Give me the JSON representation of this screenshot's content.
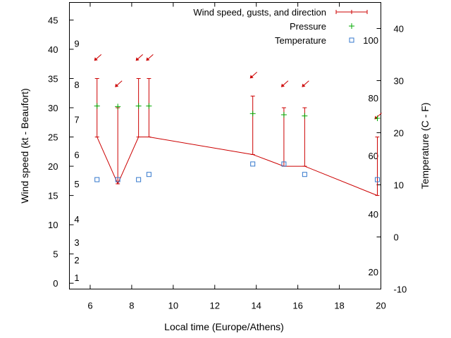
{
  "chart_data": {
    "type": "line",
    "xlabel": "Local time (Europe/Athens)",
    "ylabel": "Wind speed (kt - Beaufort)",
    "y2label": "Temperature (C - F)",
    "xlim": [
      5,
      20
    ],
    "ylim": [
      -1,
      48
    ],
    "y2lim": [
      -10,
      45
    ],
    "grid": false,
    "legend_position": "top-right",
    "x_ticks": [
      "6",
      "8",
      "10",
      "12",
      "14",
      "16",
      "18",
      "20"
    ],
    "y_ticks": [
      "0",
      "5",
      "10",
      "15",
      "20",
      "25",
      "30",
      "35",
      "40",
      "45"
    ],
    "y2_ticks": [
      "-10",
      "0",
      "10",
      "20",
      "30",
      "40"
    ],
    "beaufort_labels": [
      {
        "label": "1",
        "y": 1
      },
      {
        "label": "2",
        "y": 4
      },
      {
        "label": "3",
        "y": 7
      },
      {
        "label": "4",
        "y": 11
      },
      {
        "label": "5",
        "y": 17
      },
      {
        "label": "6",
        "y": 22
      },
      {
        "label": "7",
        "y": 28
      },
      {
        "label": "8",
        "y": 34
      },
      {
        "label": "9",
        "y": 41
      }
    ],
    "fahrenheit_labels": [
      {
        "label": "20",
        "y2": -6.7
      },
      {
        "label": "40",
        "y2": 4.4
      },
      {
        "label": "60",
        "y2": 15.6
      },
      {
        "label": "80",
        "y2": 26.7
      },
      {
        "label": "100",
        "y2": 37.8
      }
    ],
    "legend": {
      "wind": "Wind speed, gusts, and direction",
      "pressure": "Pressure",
      "temperature": "Temperature"
    },
    "series": [
      {
        "name": "Wind speed, gusts, and direction",
        "color": "#cc0000",
        "x": [
          6.33,
          7.33,
          8.33,
          8.83,
          13.83,
          15.33,
          16.33,
          19.83
        ],
        "values": [
          25,
          17,
          25,
          25,
          22,
          20,
          20,
          15
        ],
        "gusts": [
          35,
          30,
          35,
          35,
          32,
          30,
          30,
          25
        ],
        "direction_arrow_y": [
          38.5,
          34,
          38.5,
          38.5,
          35.5,
          34,
          34,
          28.5
        ]
      },
      {
        "name": "Pressure",
        "color": "#00aa00",
        "x": [
          6.33,
          7.33,
          8.33,
          8.83,
          13.83,
          15.33,
          16.33,
          19.83
        ],
        "values": [
          30.3,
          30.2,
          30.3,
          30.3,
          29,
          28.8,
          28.6,
          28.2
        ]
      },
      {
        "name": "Temperature",
        "color": "#3377cc",
        "x": [
          6.33,
          7.33,
          8.33,
          8.83,
          13.83,
          15.33,
          16.33,
          19.83
        ],
        "values": [
          11,
          11,
          11,
          12,
          14,
          14,
          12,
          11
        ]
      }
    ]
  }
}
